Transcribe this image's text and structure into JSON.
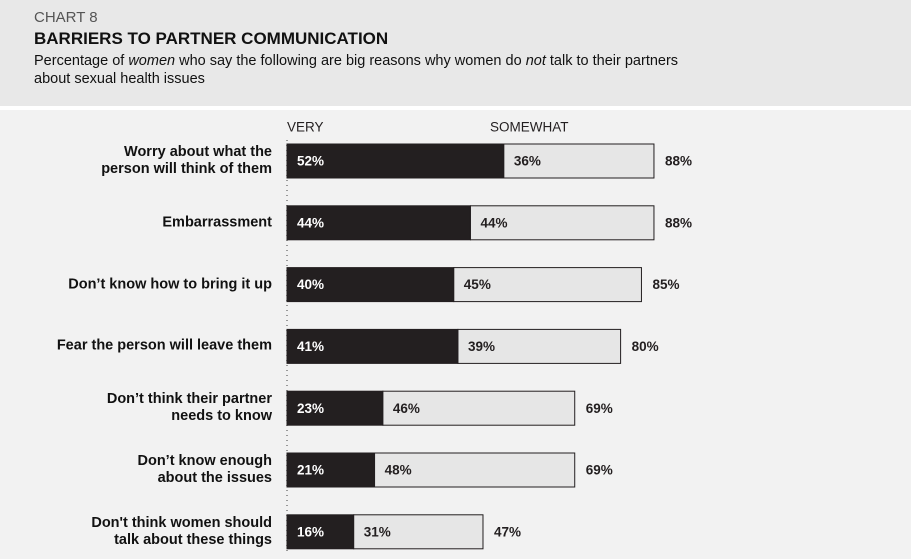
{
  "chart_data": {
    "type": "stacked-bar-horizontal",
    "kicker": "CHART 8",
    "title": "BARRIERS TO PARTNER COMMUNICATION",
    "subtitle_parts": [
      "Percentage of",
      "women",
      "who say the following are big reasons why women do",
      "not",
      "talk to their partners\nabout sexual health issues"
    ],
    "subtitle_italic": [
      false,
      true,
      false,
      true,
      false
    ],
    "categories": [
      "Worry about what the\nperson will think of them",
      "Embarrassment",
      "Don’t know how to bring it up",
      "Fear the person will leave them",
      "Don’t think their partner\nneeds to know",
      "Don’t know enough\nabout the issues",
      "Don't think women should\ntalk about these things"
    ],
    "series": [
      {
        "name": "VERY",
        "color": "#231f20",
        "label_color": "#ffffff",
        "values": [
          52,
          44,
          40,
          41,
          23,
          21,
          16
        ],
        "value_labels": [
          "52%",
          "44%",
          "40%",
          "41%",
          "23%",
          "21%",
          "16%"
        ]
      },
      {
        "name": "SOMEWHAT",
        "color": "#e6e6e6",
        "label_color": "#231f20",
        "values": [
          36,
          44,
          45,
          39,
          46,
          48,
          31
        ],
        "value_labels": [
          "36%",
          "44%",
          "45%",
          "39%",
          "46%",
          "48%",
          "31%"
        ]
      }
    ],
    "totals": [
      88,
      88,
      85,
      80,
      69,
      69,
      47
    ],
    "total_labels": [
      "88%",
      "88%",
      "85%",
      "80%",
      "69%",
      "69%",
      "47%"
    ]
  }
}
